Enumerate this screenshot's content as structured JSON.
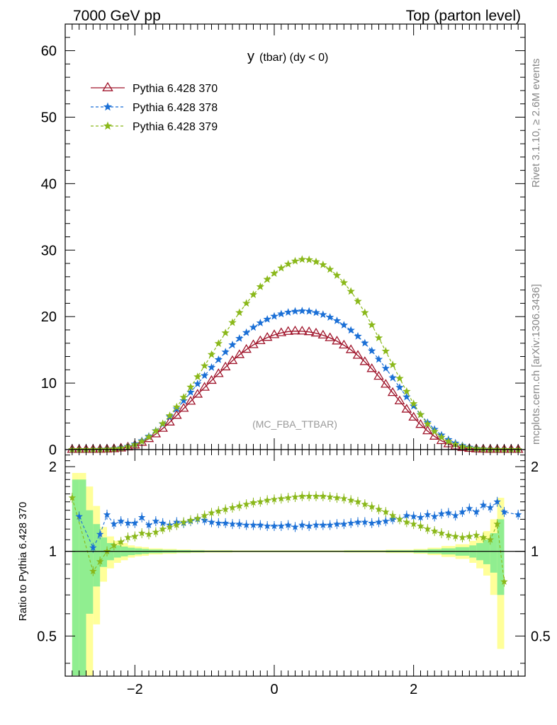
{
  "header": {
    "left": "7000 GeV pp",
    "right": "Top (parton level)"
  },
  "side_labels": {
    "rivet": "Rivet 3.1.10, ≥ 2.6M events",
    "mcplots": "mcplots.cern.ch [arXiv:1306.3436]"
  },
  "chart_data": [
    {
      "type": "line",
      "title_main": "y",
      "title_sub": "(tbar) (dy < 0)",
      "annotation": "(MC_FBA_TTBAR)",
      "xlim": [
        -3.0,
        3.6
      ],
      "ylim": [
        0,
        64
      ],
      "yticks": [
        "0",
        "10",
        "20",
        "30",
        "40",
        "50",
        "60"
      ],
      "ytick_values": [
        0,
        10,
        20,
        30,
        40,
        50,
        60
      ],
      "legend_position": "top-left",
      "series": [
        {
          "name": "Pythia 6.428 370",
          "color": "#a0162c",
          "marker": "open-triangle",
          "x": [
            -2.9,
            -2.8,
            -2.7,
            -2.6,
            -2.5,
            -2.4,
            -2.3,
            -2.2,
            -2.1,
            -2.0,
            -1.9,
            -1.8,
            -1.7,
            -1.6,
            -1.5,
            -1.4,
            -1.3,
            -1.2,
            -1.1,
            -1.0,
            -0.9,
            -0.8,
            -0.7,
            -0.6,
            -0.5,
            -0.4,
            -0.3,
            -0.2,
            -0.1,
            0.0,
            0.1,
            0.2,
            0.3,
            0.4,
            0.5,
            0.6,
            0.7,
            0.8,
            0.9,
            1.0,
            1.1,
            1.2,
            1.3,
            1.4,
            1.5,
            1.6,
            1.7,
            1.8,
            1.9,
            2.0,
            2.1,
            2.2,
            2.3,
            2.4,
            2.5,
            2.6,
            2.7,
            2.8,
            2.9,
            3.0,
            3.1,
            3.2,
            3.3,
            3.4,
            3.5
          ],
          "y": [
            0,
            0,
            0,
            0.01,
            0.02,
            0.05,
            0.1,
            0.2,
            0.37,
            0.65,
            1.06,
            1.62,
            2.33,
            3.17,
            4.11,
            5.12,
            6.18,
            7.24,
            8.3,
            9.35,
            10.38,
            11.4,
            12.4,
            13.36,
            14.25,
            15.05,
            15.75,
            16.35,
            16.85,
            17.25,
            17.55,
            17.75,
            17.82,
            17.8,
            17.7,
            17.5,
            17.2,
            16.8,
            16.3,
            15.7,
            15.0,
            14.15,
            13.2,
            12.15,
            11.0,
            9.8,
            8.55,
            7.3,
            6.05,
            4.85,
            3.75,
            2.8,
            1.98,
            1.32,
            0.84,
            0.5,
            0.28,
            0.15,
            0.07,
            0.03,
            0.01,
            0.01,
            0,
            0,
            0
          ]
        },
        {
          "name": "Pythia 6.428 378",
          "color": "#1a6fd6",
          "marker": "star",
          "x": [
            -2.9,
            -2.8,
            -2.7,
            -2.6,
            -2.5,
            -2.4,
            -2.3,
            -2.2,
            -2.1,
            -2.0,
            -1.9,
            -1.8,
            -1.7,
            -1.6,
            -1.5,
            -1.4,
            -1.3,
            -1.2,
            -1.1,
            -1.0,
            -0.9,
            -0.8,
            -0.7,
            -0.6,
            -0.5,
            -0.4,
            -0.3,
            -0.2,
            -0.1,
            0.0,
            0.1,
            0.2,
            0.3,
            0.4,
            0.5,
            0.6,
            0.7,
            0.8,
            0.9,
            1.0,
            1.1,
            1.2,
            1.3,
            1.4,
            1.5,
            1.6,
            1.7,
            1.8,
            1.9,
            2.0,
            2.1,
            2.2,
            2.3,
            2.4,
            2.5,
            2.6,
            2.7,
            2.8,
            2.9,
            3.0,
            3.1,
            3.2,
            3.3,
            3.4,
            3.5
          ],
          "y": [
            0,
            0,
            0,
            0.01,
            0.03,
            0.07,
            0.14,
            0.27,
            0.48,
            0.83,
            1.33,
            2.0,
            2.84,
            3.83,
            4.94,
            6.12,
            7.35,
            8.62,
            9.88,
            11.13,
            12.35,
            13.53,
            14.67,
            15.75,
            16.72,
            17.6,
            18.38,
            19.05,
            19.6,
            20.05,
            20.4,
            20.65,
            20.8,
            20.85,
            20.8,
            20.6,
            20.3,
            19.9,
            19.38,
            18.72,
            17.95,
            17.05,
            16.02,
            14.85,
            13.58,
            12.22,
            10.8,
            9.35,
            7.92,
            6.55,
            5.25,
            4.08,
            3.04,
            2.18,
            1.5,
            0.98,
            0.6,
            0.35,
            0.19,
            0.09,
            0.04,
            0.02,
            0.01,
            0,
            0
          ]
        },
        {
          "name": "Pythia 6.428 379",
          "color": "#8ab81a",
          "marker": "star",
          "x": [
            -2.9,
            -2.8,
            -2.7,
            -2.6,
            -2.5,
            -2.4,
            -2.3,
            -2.2,
            -2.1,
            -2.0,
            -1.9,
            -1.8,
            -1.7,
            -1.6,
            -1.5,
            -1.4,
            -1.3,
            -1.2,
            -1.1,
            -1.0,
            -0.9,
            -0.8,
            -0.7,
            -0.6,
            -0.5,
            -0.4,
            -0.3,
            -0.2,
            -0.1,
            0.0,
            0.1,
            0.2,
            0.3,
            0.4,
            0.5,
            0.6,
            0.7,
            0.8,
            0.9,
            1.0,
            1.1,
            1.2,
            1.3,
            1.4,
            1.5,
            1.6,
            1.7,
            1.8,
            1.9,
            2.0,
            2.1,
            2.2,
            2.3,
            2.4,
            2.5,
            2.6,
            2.7,
            2.8,
            2.9,
            3.0,
            3.1,
            3.2,
            3.3,
            3.4,
            3.5
          ],
          "y": [
            0,
            0,
            0,
            0.01,
            0.02,
            0.05,
            0.11,
            0.22,
            0.42,
            0.74,
            1.22,
            1.9,
            2.8,
            3.9,
            5.1,
            6.4,
            7.85,
            9.4,
            10.95,
            12.6,
            14.3,
            15.95,
            17.55,
            19.1,
            20.6,
            22.0,
            23.3,
            24.5,
            25.6,
            26.5,
            27.3,
            27.9,
            28.35,
            28.6,
            28.55,
            28.25,
            27.8,
            27.1,
            26.2,
            25.1,
            23.8,
            22.3,
            20.6,
            18.75,
            16.8,
            14.8,
            12.75,
            10.7,
            8.75,
            6.9,
            5.25,
            3.85,
            2.72,
            1.85,
            1.22,
            0.77,
            0.46,
            0.26,
            0.14,
            0.07,
            0.03,
            0.02,
            0.01,
            0,
            0
          ]
        }
      ]
    },
    {
      "type": "line",
      "ylabel": "Ratio to Pythia 6.428 370",
      "xlim": [
        -3.0,
        3.6
      ],
      "ylim": [
        0.36,
        2.3
      ],
      "log_y": true,
      "yticks": [
        "0.5",
        "1",
        "2"
      ],
      "ytick_values": [
        0.5,
        1,
        2
      ],
      "xticks": [
        "−2",
        "0",
        "2"
      ],
      "xtick_values": [
        -2,
        0,
        2
      ],
      "reference": 1,
      "series": [
        {
          "name": "Pythia 6.428 378",
          "color": "#1a6fd6",
          "x": [
            -2.8,
            -2.6,
            -2.5,
            -2.4,
            -2.3,
            -2.2,
            -2.1,
            -2.0,
            -1.9,
            -1.8,
            -1.7,
            -1.6,
            -1.5,
            -1.4,
            -1.3,
            -1.2,
            -1.1,
            -1.0,
            -0.9,
            -0.8,
            -0.7,
            -0.6,
            -0.5,
            -0.4,
            -0.3,
            -0.2,
            -0.1,
            0.0,
            0.1,
            0.2,
            0.3,
            0.4,
            0.5,
            0.6,
            0.7,
            0.8,
            0.9,
            1.0,
            1.1,
            1.2,
            1.3,
            1.4,
            1.5,
            1.6,
            1.7,
            1.8,
            1.9,
            2.0,
            2.1,
            2.2,
            2.3,
            2.4,
            2.5,
            2.6,
            2.7,
            2.8,
            2.9,
            3.0,
            3.1,
            3.2,
            3.3,
            3.5
          ],
          "y": [
            1.33,
            1.03,
            1.15,
            1.35,
            1.25,
            1.28,
            1.26,
            1.26,
            1.32,
            1.24,
            1.28,
            1.26,
            1.24,
            1.27,
            1.26,
            1.28,
            1.3,
            1.29,
            1.27,
            1.26,
            1.26,
            1.25,
            1.25,
            1.24,
            1.24,
            1.24,
            1.23,
            1.23,
            1.23,
            1.24,
            1.22,
            1.24,
            1.23,
            1.24,
            1.24,
            1.24,
            1.25,
            1.25,
            1.26,
            1.27,
            1.27,
            1.26,
            1.27,
            1.28,
            1.3,
            1.3,
            1.34,
            1.33,
            1.32,
            1.35,
            1.33,
            1.36,
            1.37,
            1.34,
            1.38,
            1.42,
            1.38,
            1.46,
            1.43,
            1.5,
            1.38,
            1.35
          ]
        },
        {
          "name": "Pythia 6.428 379",
          "color": "#8ab81a",
          "x": [
            -2.9,
            -2.6,
            -2.5,
            -2.4,
            -2.3,
            -2.2,
            -2.1,
            -2.0,
            -1.9,
            -1.8,
            -1.7,
            -1.6,
            -1.5,
            -1.4,
            -1.3,
            -1.2,
            -1.1,
            -1.0,
            -0.9,
            -0.8,
            -0.7,
            -0.6,
            -0.5,
            -0.4,
            -0.3,
            -0.2,
            -0.1,
            0.0,
            0.1,
            0.2,
            0.3,
            0.4,
            0.5,
            0.6,
            0.7,
            0.8,
            0.9,
            1.0,
            1.1,
            1.2,
            1.3,
            1.4,
            1.5,
            1.6,
            1.7,
            1.8,
            1.9,
            2.0,
            2.1,
            2.2,
            2.3,
            2.4,
            2.5,
            2.6,
            2.7,
            2.8,
            2.9,
            3.0,
            3.1,
            3.2,
            3.3
          ],
          "y": [
            1.55,
            0.85,
            0.92,
            1.0,
            1.05,
            1.08,
            1.12,
            1.13,
            1.16,
            1.15,
            1.17,
            1.2,
            1.22,
            1.24,
            1.27,
            1.29,
            1.31,
            1.34,
            1.37,
            1.39,
            1.41,
            1.43,
            1.45,
            1.47,
            1.49,
            1.5,
            1.52,
            1.53,
            1.54,
            1.55,
            1.56,
            1.57,
            1.57,
            1.57,
            1.57,
            1.56,
            1.55,
            1.54,
            1.52,
            1.5,
            1.47,
            1.44,
            1.41,
            1.38,
            1.34,
            1.3,
            1.27,
            1.25,
            1.23,
            1.2,
            1.18,
            1.16,
            1.14,
            1.13,
            1.12,
            1.13,
            1.14,
            1.12,
            1.1,
            1.25,
            0.78
          ]
        }
      ],
      "stat_bands": {
        "x_edges": [
          -2.9,
          -2.8,
          -2.7,
          -2.6,
          -2.5,
          -2.4,
          -2.3,
          -2.2,
          -2.1,
          -2.0,
          -1.9,
          -1.8,
          -1.6,
          -1.4,
          -1.2,
          -1.0,
          -0.6,
          0.0,
          1.0,
          1.6,
          2.0,
          2.2,
          2.4,
          2.6,
          2.8,
          2.9,
          3.0,
          3.1,
          3.2,
          3.3
        ],
        "half_width_green": [
          0.8,
          0.8,
          0.4,
          0.25,
          0.12,
          0.07,
          0.05,
          0.04,
          0.03,
          0.025,
          0.02,
          0.015,
          0.012,
          0.01,
          0.008,
          0.006,
          0.005,
          0.005,
          0.006,
          0.008,
          0.012,
          0.018,
          0.025,
          0.035,
          0.05,
          0.07,
          0.1,
          0.16,
          0.3
        ],
        "half_width_yellow": [
          0.9,
          0.9,
          0.7,
          0.45,
          0.22,
          0.13,
          0.09,
          0.07,
          0.05,
          0.04,
          0.035,
          0.025,
          0.02,
          0.015,
          0.012,
          0.01,
          0.008,
          0.008,
          0.01,
          0.014,
          0.02,
          0.03,
          0.045,
          0.06,
          0.09,
          0.13,
          0.18,
          0.3,
          0.55
        ]
      }
    }
  ]
}
